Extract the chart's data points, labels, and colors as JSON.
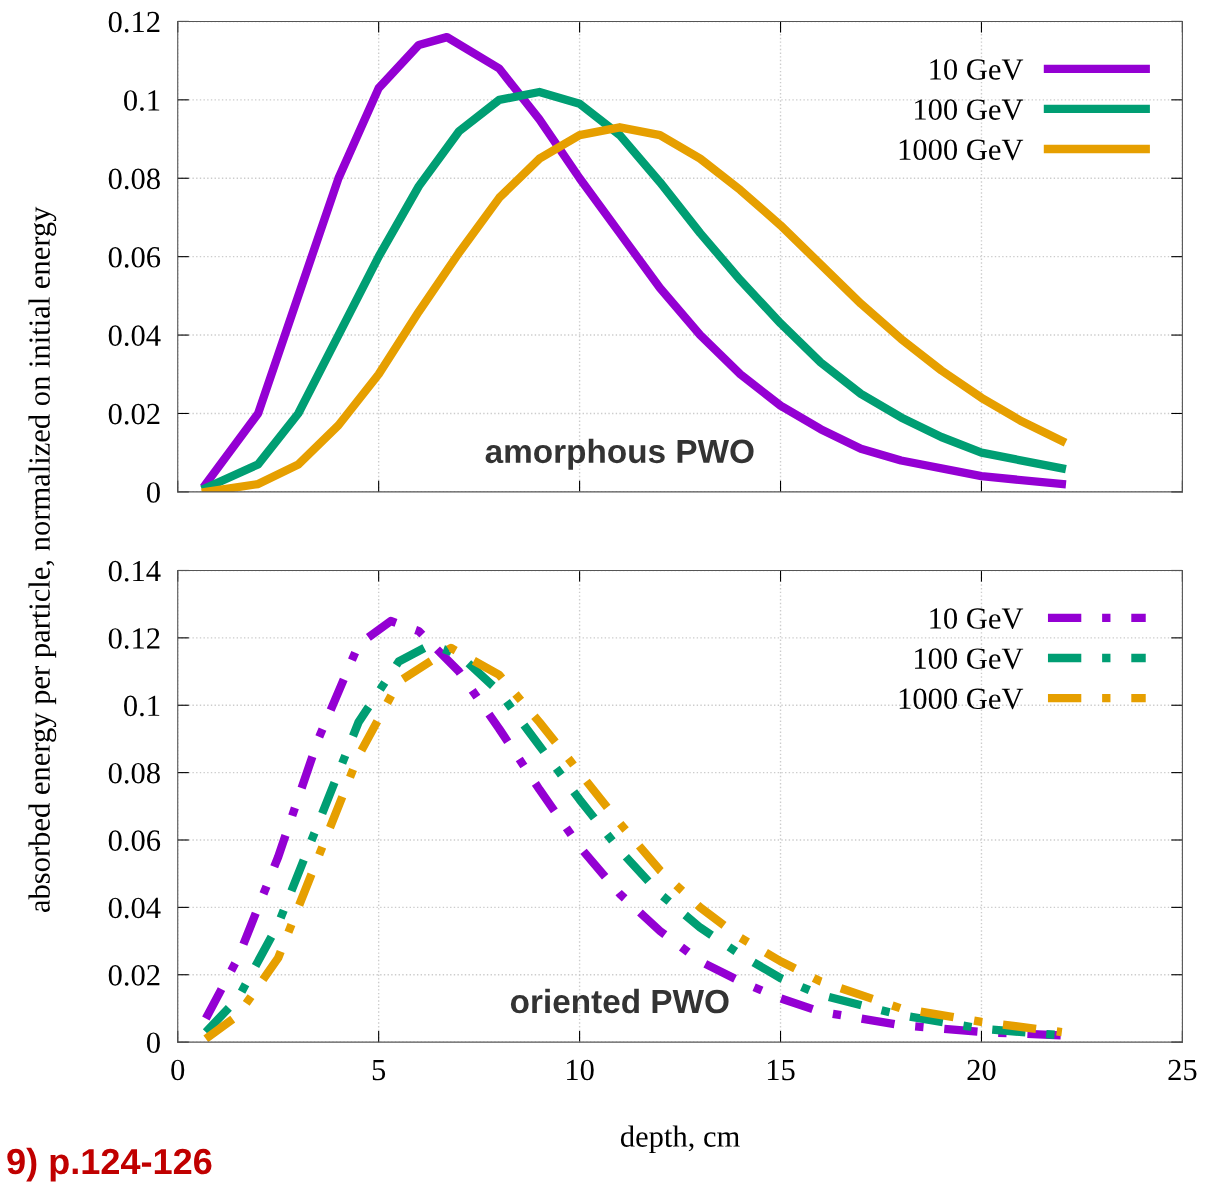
{
  "chart_data": [
    {
      "type": "line",
      "ylabel": "absorbed energy per particle, normalized on initial energy",
      "annotations": [
        "amorphous PWO"
      ],
      "xlim": [
        0,
        25
      ],
      "xticks": [
        0,
        5,
        10,
        15,
        20,
        25
      ],
      "ylim": [
        0,
        0.12
      ],
      "yticks": [
        0,
        0.02,
        0.04,
        0.06,
        0.08,
        0.1,
        0.12
      ],
      "tick_labels": "y",
      "grid": true,
      "legend": "top right",
      "line_style": "solid",
      "marker": "none",
      "series": [
        {
          "name": "10 GeV",
          "color": "#9400d3",
          "x": [
            0.7,
            2,
            3,
            4,
            5,
            6,
            6.7,
            8,
            9,
            10,
            11,
            12,
            13,
            14,
            15,
            16,
            17,
            18,
            20,
            22
          ],
          "values": [
            0.002,
            0.02,
            0.05,
            0.08,
            0.103,
            0.114,
            0.116,
            0.108,
            0.095,
            0.08,
            0.066,
            0.052,
            0.04,
            0.03,
            0.022,
            0.016,
            0.011,
            0.008,
            0.004,
            0.002
          ]
        },
        {
          "name": "100 GeV",
          "color": "#009e73",
          "x": [
            0.7,
            2,
            3,
            4,
            5,
            6,
            7,
            8,
            9,
            10,
            11,
            12,
            13,
            14,
            15,
            16,
            17,
            18,
            19,
            20,
            22
          ],
          "values": [
            0.001,
            0.007,
            0.02,
            0.04,
            0.06,
            0.078,
            0.092,
            0.1,
            0.102,
            0.099,
            0.091,
            0.079,
            0.066,
            0.054,
            0.043,
            0.033,
            0.025,
            0.019,
            0.014,
            0.01,
            0.006
          ]
        },
        {
          "name": "1000 GeV",
          "color": "#e69f00",
          "x": [
            0.7,
            2,
            3,
            4,
            5,
            6,
            7,
            8,
            9,
            10,
            11,
            12,
            13,
            14,
            15,
            16,
            17,
            18,
            19,
            20,
            21,
            22
          ],
          "values": [
            0,
            0.002,
            0.007,
            0.017,
            0.03,
            0.046,
            0.061,
            0.075,
            0.085,
            0.091,
            0.093,
            0.091,
            0.085,
            0.077,
            0.068,
            0.058,
            0.048,
            0.039,
            0.031,
            0.024,
            0.018,
            0.013
          ]
        }
      ]
    },
    {
      "type": "line",
      "xlabel": "depth, cm",
      "annotations": [
        "oriented PWO",
        "9) p.124-126"
      ],
      "xlim": [
        0,
        25
      ],
      "xticks": [
        0,
        5,
        10,
        15,
        20,
        25
      ],
      "ylim": [
        0,
        0.14
      ],
      "yticks": [
        0,
        0.02,
        0.04,
        0.06,
        0.08,
        0.1,
        0.12,
        0.14
      ],
      "grid": true,
      "legend": "top right",
      "line_style": "dashed",
      "marker": "none",
      "series": [
        {
          "name": "10 GeV",
          "color": "#9400d3",
          "x": [
            0.7,
            1.5,
            2.5,
            3.5,
            4.5,
            5.3,
            6,
            7,
            8,
            9,
            10,
            11,
            12,
            13,
            14,
            15,
            16,
            18,
            20,
            22
          ],
          "values": [
            0.007,
            0.025,
            0.055,
            0.09,
            0.118,
            0.125,
            0.122,
            0.11,
            0.093,
            0.075,
            0.058,
            0.044,
            0.033,
            0.024,
            0.018,
            0.013,
            0.009,
            0.005,
            0.003,
            0.002
          ]
        },
        {
          "name": "100 GeV",
          "color": "#009e73",
          "x": [
            0.7,
            1.5,
            2.5,
            3.5,
            4.5,
            5.5,
            6.3,
            7,
            8,
            9,
            10,
            11,
            12,
            13,
            14,
            15,
            16,
            18,
            20,
            22
          ],
          "values": [
            0.003,
            0.013,
            0.035,
            0.065,
            0.095,
            0.113,
            0.118,
            0.115,
            0.104,
            0.088,
            0.072,
            0.057,
            0.044,
            0.034,
            0.026,
            0.019,
            0.014,
            0.008,
            0.004,
            0.002
          ]
        },
        {
          "name": "1000 GeV",
          "color": "#e69f00",
          "x": [
            0.7,
            1.5,
            2.5,
            3.5,
            4.5,
            5.5,
            6.8,
            8,
            9,
            10,
            11,
            12,
            13,
            14,
            15,
            16,
            18,
            20,
            22
          ],
          "values": [
            0.001,
            0.008,
            0.025,
            0.055,
            0.085,
            0.107,
            0.117,
            0.109,
            0.095,
            0.08,
            0.065,
            0.051,
            0.04,
            0.031,
            0.024,
            0.018,
            0.01,
            0.006,
            0.003
          ]
        }
      ]
    }
  ]
}
